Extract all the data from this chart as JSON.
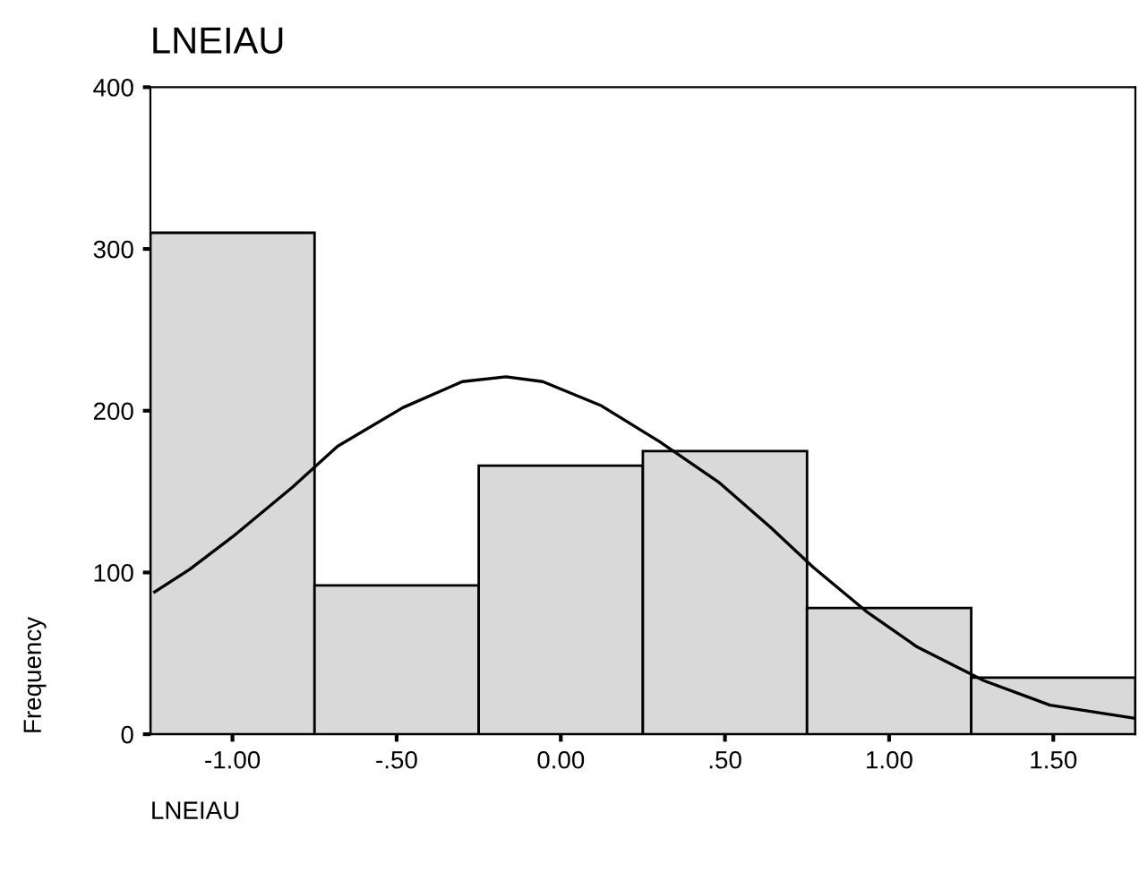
{
  "chart_data": {
    "type": "histogram",
    "title": "LNEIAU",
    "xlabel": "LNEIAU",
    "ylabel": "Frequency",
    "bins": [
      -1.25,
      -0.75,
      -0.25,
      0.25,
      0.75,
      1.25,
      1.75
    ],
    "values": [
      310,
      92,
      166,
      175,
      78,
      35
    ],
    "color": "#d9d9d9",
    "series": [
      {
        "type": "line",
        "color": "#000000",
        "x": [
          -1.237,
          -1.13,
          -1.0,
          -0.816,
          -0.68,
          -0.48,
          -0.3,
          -0.167,
          -0.055,
          0.124,
          0.3,
          0.48,
          0.638,
          0.77,
          0.93,
          1.085,
          1.29,
          1.49,
          1.745
        ],
        "values": [
          88,
          102,
          122,
          153,
          178,
          202,
          218,
          221,
          218,
          203,
          181,
          156,
          128,
          103,
          76,
          54,
          33,
          18,
          10
        ]
      }
    ],
    "xlim": [
      -1.25,
      1.75
    ],
    "xticks": [
      {
        "value": -1,
        "label": "-1.00"
      },
      {
        "value": -0.5,
        "label": "-.50"
      },
      {
        "value": 0,
        "label": "0.00"
      },
      {
        "value": 0.5,
        "label": ".50"
      },
      {
        "value": 1,
        "label": "1.00"
      },
      {
        "value": 1.5,
        "label": "1.50"
      }
    ],
    "ylim": [
      0,
      400
    ],
    "yticks": [
      0,
      100,
      200,
      300,
      400
    ],
    "grid": false
  }
}
